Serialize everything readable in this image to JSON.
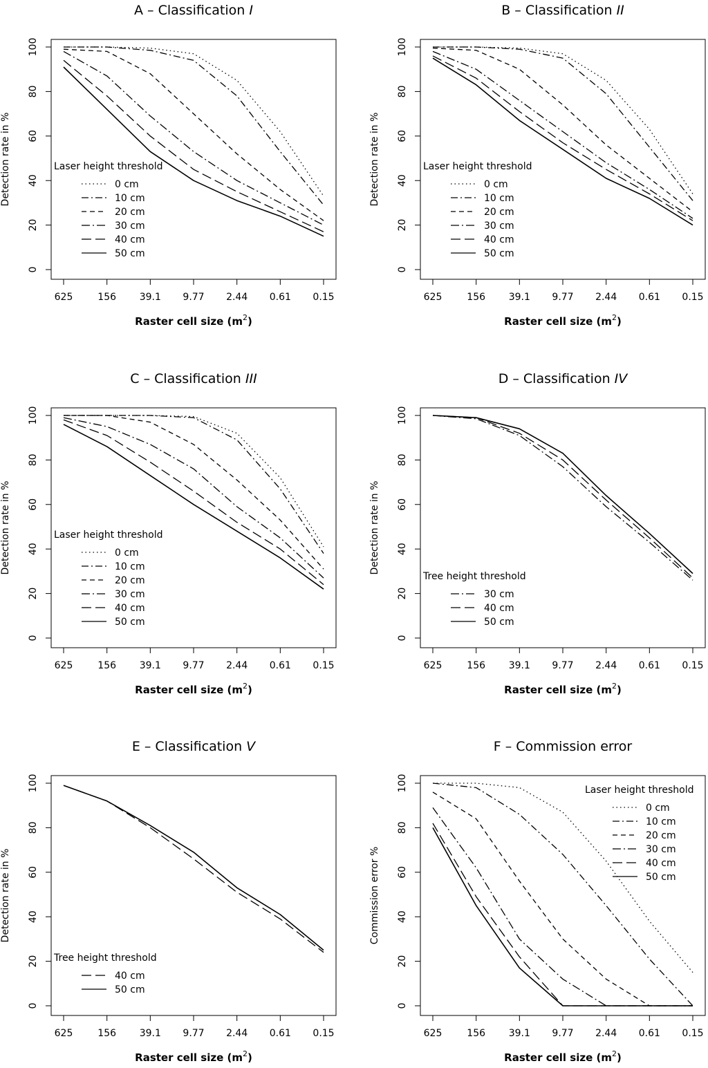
{
  "line_styles": {
    "0 cm": "1.5 4",
    "10 cm": "10 4 2 4",
    "20 cm": "7 5",
    "30 cm": "12 4 2 4",
    "40 cm": "14 6",
    "50 cm": ""
  },
  "chart_data": [
    {
      "type": "line",
      "title_prefix": "A – Classification ",
      "title_italic": "I",
      "xlabel": "Raster cell size (m",
      "xlabel_sup": "2",
      "xlabel_close": ")",
      "ylabel": "Detection rate in %",
      "categories": [
        "625",
        "156",
        "39.1",
        "9.77",
        "2.44",
        "0.61",
        "0.15"
      ],
      "yticks": [
        "0",
        "20",
        "40",
        "60",
        "80",
        "100"
      ],
      "ylim": [
        0,
        100
      ],
      "legend_title": "Laser height threshold",
      "legend_position": "left",
      "series": [
        {
          "name": "0 cm",
          "values": [
            100,
            100,
            99.5,
            97,
            85,
            62,
            33
          ]
        },
        {
          "name": "10 cm",
          "values": [
            100,
            100,
            98.5,
            94,
            78,
            53,
            29
          ]
        },
        {
          "name": "20 cm",
          "values": [
            99,
            98,
            88,
            70,
            52,
            36,
            22
          ]
        },
        {
          "name": "30 cm",
          "values": [
            98,
            87,
            69,
            53,
            40,
            30,
            20
          ]
        },
        {
          "name": "40 cm",
          "values": [
            94,
            78,
            60,
            45,
            35,
            26,
            17
          ]
        },
        {
          "name": "50 cm",
          "values": [
            91,
            72,
            53,
            40,
            31,
            24,
            15
          ]
        }
      ]
    },
    {
      "type": "line",
      "title_prefix": "B – Classification ",
      "title_italic": "II",
      "xlabel": "Raster cell size (m",
      "xlabel_sup": "2",
      "xlabel_close": ")",
      "ylabel": "Detection rate in %",
      "categories": [
        "625",
        "156",
        "39.1",
        "9.77",
        "2.44",
        "0.61",
        "0.15"
      ],
      "yticks": [
        "0",
        "20",
        "40",
        "60",
        "80",
        "100"
      ],
      "ylim": [
        0,
        100
      ],
      "legend_title": "Laser height threshold",
      "legend_position": "left",
      "series": [
        {
          "name": "0 cm",
          "values": [
            100,
            100,
            99.5,
            97,
            85,
            63,
            34
          ]
        },
        {
          "name": "10 cm",
          "values": [
            100,
            100,
            99,
            95,
            79,
            55,
            31
          ]
        },
        {
          "name": "20 cm",
          "values": [
            99.5,
            98.5,
            90,
            74,
            56,
            41,
            26
          ]
        },
        {
          "name": "30 cm",
          "values": [
            98,
            90,
            76,
            62,
            48,
            36,
            23
          ]
        },
        {
          "name": "40 cm",
          "values": [
            96,
            86,
            71,
            57,
            45,
            34,
            22
          ]
        },
        {
          "name": "50 cm",
          "values": [
            95,
            83,
            67,
            54,
            41,
            32,
            20
          ]
        }
      ]
    },
    {
      "type": "line",
      "title_prefix": "C – Classification ",
      "title_italic": "III",
      "xlabel": "Raster cell size (m",
      "xlabel_sup": "2",
      "xlabel_close": ")",
      "ylabel": "Detection rate in %",
      "categories": [
        "625",
        "156",
        "39.1",
        "9.77",
        "2.44",
        "0.61",
        "0.15"
      ],
      "yticks": [
        "0",
        "20",
        "40",
        "60",
        "80",
        "100"
      ],
      "ylim": [
        0,
        100
      ],
      "legend_title": "Laser height threshold",
      "legend_position": "left",
      "series": [
        {
          "name": "0 cm",
          "values": [
            100,
            100,
            100,
            99.5,
            92,
            72,
            41
          ]
        },
        {
          "name": "10 cm",
          "values": [
            100,
            100,
            100,
            99,
            89,
            67,
            38
          ]
        },
        {
          "name": "20 cm",
          "values": [
            100,
            100,
            97,
            87,
            71,
            53,
            31
          ]
        },
        {
          "name": "30 cm",
          "values": [
            99,
            95,
            87,
            76,
            59,
            45,
            27
          ]
        },
        {
          "name": "40 cm",
          "values": [
            98,
            91,
            79,
            66,
            52,
            40,
            24
          ]
        },
        {
          "name": "50 cm",
          "values": [
            96,
            86,
            73,
            60,
            48,
            36,
            22
          ]
        }
      ]
    },
    {
      "type": "line",
      "title_prefix": "D – Classification ",
      "title_italic": "IV",
      "xlabel": "Raster cell size (m",
      "xlabel_sup": "2",
      "xlabel_close": ")",
      "ylabel": "Detection rate in %",
      "categories": [
        "625",
        "156",
        "39.1",
        "9.77",
        "2.44",
        "0.61",
        "0.15"
      ],
      "yticks": [
        "0",
        "20",
        "40",
        "60",
        "80",
        "100"
      ],
      "ylim": [
        0,
        100
      ],
      "legend_title": "Tree height threshold",
      "legend_position": "left",
      "series": [
        {
          "name": "30 cm",
          "values": [
            100,
            98.5,
            91,
            77,
            59,
            43,
            26
          ]
        },
        {
          "name": "40 cm",
          "values": [
            100,
            99,
            92,
            80,
            62,
            45,
            27
          ]
        },
        {
          "name": "50 cm",
          "values": [
            100,
            99,
            94,
            83,
            64,
            47,
            29
          ]
        }
      ]
    },
    {
      "type": "line",
      "title_prefix": "E – Classification ",
      "title_italic": "V",
      "xlabel": "Raster cell size (m",
      "xlabel_sup": "2",
      "xlabel_close": ")",
      "ylabel": "Detection rate in %",
      "categories": [
        "625",
        "156",
        "39.1",
        "9.77",
        "2.44",
        "0.61",
        "0.15"
      ],
      "yticks": [
        "0",
        "20",
        "40",
        "60",
        "80",
        "100"
      ],
      "ylim": [
        0,
        100
      ],
      "legend_title": "Tree height threshold",
      "legend_position": "left",
      "series": [
        {
          "name": "40 cm",
          "values": [
            99,
            92,
            80,
            66,
            51,
            39,
            24
          ]
        },
        {
          "name": "50 cm",
          "values": [
            99,
            92,
            81,
            69,
            53,
            41,
            25
          ]
        }
      ]
    },
    {
      "type": "line",
      "title_prefix": "F – Commission error",
      "title_italic": "",
      "xlabel": "Raster cell size (m",
      "xlabel_sup": "2",
      "xlabel_close": ")",
      "ylabel": "Commission error %",
      "categories": [
        "625",
        "156",
        "39.1",
        "9.77",
        "2.44",
        "0.61",
        "0.15"
      ],
      "yticks": [
        "0",
        "20",
        "40",
        "60",
        "80",
        "100"
      ],
      "ylim": [
        0,
        100
      ],
      "legend_title": "Laser height threshold",
      "legend_position": "top-right",
      "series": [
        {
          "name": "0 cm",
          "values": [
            100,
            100,
            98,
            87,
            65,
            38,
            15
          ]
        },
        {
          "name": "10 cm",
          "values": [
            100,
            98,
            86,
            68,
            45,
            21,
            0
          ]
        },
        {
          "name": "20 cm",
          "values": [
            96,
            84,
            56,
            30,
            12,
            0,
            0
          ]
        },
        {
          "name": "30 cm",
          "values": [
            89,
            62,
            30,
            12,
            0,
            0,
            0
          ]
        },
        {
          "name": "40 cm",
          "values": [
            82,
            49,
            22,
            0,
            0,
            0,
            0
          ]
        },
        {
          "name": "50 cm",
          "values": [
            80,
            45,
            17,
            0,
            0,
            0,
            0
          ]
        }
      ]
    }
  ]
}
